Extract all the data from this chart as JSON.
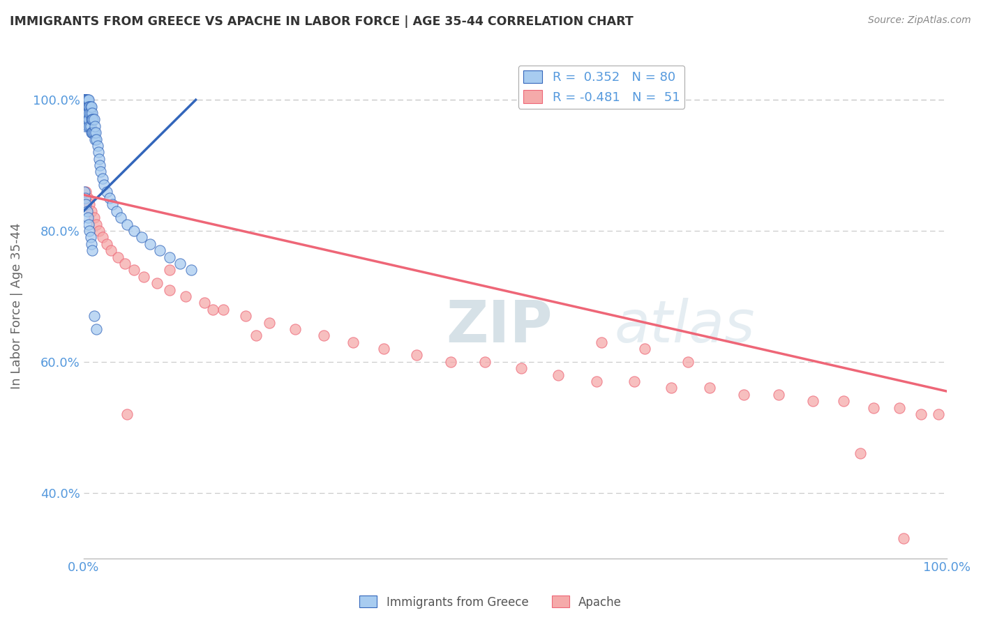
{
  "title": "IMMIGRANTS FROM GREECE VS APACHE IN LABOR FORCE | AGE 35-44 CORRELATION CHART",
  "source_text": "Source: ZipAtlas.com",
  "ylabel": "In Labor Force | Age 35-44",
  "watermark": "ZIPatlas",
  "legend_r1": "R =  0.352   N = 80",
  "legend_r2": "R = -0.481   N =  51",
  "series1_color": "#A8CCF0",
  "series2_color": "#F5AAAA",
  "trendline1_color": "#3366BB",
  "trendline2_color": "#EE6677",
  "xlim": [
    0.0,
    1.0
  ],
  "ylim": [
    0.3,
    1.07
  ],
  "blue_points_x": [
    0.001,
    0.001,
    0.001,
    0.001,
    0.001,
    0.002,
    0.002,
    0.002,
    0.002,
    0.002,
    0.002,
    0.002,
    0.003,
    0.003,
    0.003,
    0.003,
    0.003,
    0.004,
    0.004,
    0.004,
    0.004,
    0.005,
    0.005,
    0.005,
    0.005,
    0.006,
    0.006,
    0.006,
    0.007,
    0.007,
    0.007,
    0.008,
    0.008,
    0.008,
    0.009,
    0.009,
    0.009,
    0.01,
    0.01,
    0.01,
    0.011,
    0.011,
    0.012,
    0.012,
    0.013,
    0.013,
    0.014,
    0.015,
    0.016,
    0.017,
    0.018,
    0.019,
    0.02,
    0.022,
    0.024,
    0.027,
    0.03,
    0.033,
    0.038,
    0.043,
    0.05,
    0.058,
    0.067,
    0.077,
    0.088,
    0.1,
    0.112,
    0.125,
    0.001,
    0.002,
    0.003,
    0.004,
    0.005,
    0.006,
    0.007,
    0.008,
    0.009,
    0.01,
    0.012,
    0.015
  ],
  "blue_points_y": [
    1.0,
    1.0,
    1.0,
    1.0,
    0.99,
    1.0,
    1.0,
    1.0,
    0.99,
    0.98,
    0.97,
    0.96,
    1.0,
    1.0,
    0.99,
    0.98,
    0.97,
    1.0,
    0.99,
    0.98,
    0.97,
    1.0,
    0.99,
    0.98,
    0.96,
    1.0,
    0.99,
    0.97,
    0.99,
    0.98,
    0.96,
    0.99,
    0.98,
    0.96,
    0.99,
    0.97,
    0.95,
    0.98,
    0.97,
    0.95,
    0.97,
    0.95,
    0.97,
    0.95,
    0.96,
    0.94,
    0.95,
    0.94,
    0.93,
    0.92,
    0.91,
    0.9,
    0.89,
    0.88,
    0.87,
    0.86,
    0.85,
    0.84,
    0.83,
    0.82,
    0.81,
    0.8,
    0.79,
    0.78,
    0.77,
    0.76,
    0.75,
    0.74,
    0.86,
    0.85,
    0.84,
    0.83,
    0.82,
    0.81,
    0.8,
    0.79,
    0.78,
    0.77,
    0.67,
    0.65
  ],
  "pink_points_x": [
    0.003,
    0.005,
    0.007,
    0.009,
    0.012,
    0.015,
    0.018,
    0.022,
    0.027,
    0.032,
    0.04,
    0.048,
    0.058,
    0.07,
    0.085,
    0.1,
    0.118,
    0.14,
    0.162,
    0.188,
    0.215,
    0.245,
    0.278,
    0.312,
    0.348,
    0.386,
    0.425,
    0.465,
    0.507,
    0.55,
    0.594,
    0.638,
    0.681,
    0.725,
    0.765,
    0.805,
    0.845,
    0.88,
    0.915,
    0.945,
    0.97,
    0.99,
    0.05,
    0.1,
    0.15,
    0.2,
    0.6,
    0.65,
    0.7,
    0.9,
    0.95
  ],
  "pink_points_y": [
    0.86,
    0.85,
    0.84,
    0.83,
    0.82,
    0.81,
    0.8,
    0.79,
    0.78,
    0.77,
    0.76,
    0.75,
    0.74,
    0.73,
    0.72,
    0.71,
    0.7,
    0.69,
    0.68,
    0.67,
    0.66,
    0.65,
    0.64,
    0.63,
    0.62,
    0.61,
    0.6,
    0.6,
    0.59,
    0.58,
    0.57,
    0.57,
    0.56,
    0.56,
    0.55,
    0.55,
    0.54,
    0.54,
    0.53,
    0.53,
    0.52,
    0.52,
    0.52,
    0.74,
    0.68,
    0.64,
    0.63,
    0.62,
    0.6,
    0.46,
    0.33
  ],
  "trendline1_x": [
    0.0,
    0.13
  ],
  "trendline1_y": [
    0.83,
    1.0
  ],
  "trendline2_x": [
    0.0,
    1.0
  ],
  "trendline2_y": [
    0.855,
    0.555
  ],
  "ytick_labels": [
    "40.0%",
    "60.0%",
    "80.0%",
    "100.0%"
  ],
  "ytick_values": [
    0.4,
    0.6,
    0.8,
    1.0
  ],
  "xtick_values": [
    0.0,
    0.2,
    0.4,
    0.6,
    0.8,
    1.0
  ],
  "xtick_labels": [
    "0.0%",
    "",
    "",
    "",
    "",
    "100.0%"
  ],
  "background_color": "#FFFFFF",
  "grid_color": "#CCCCCC",
  "title_color": "#333333",
  "axis_label_color": "#666666",
  "tick_color": "#5599DD"
}
